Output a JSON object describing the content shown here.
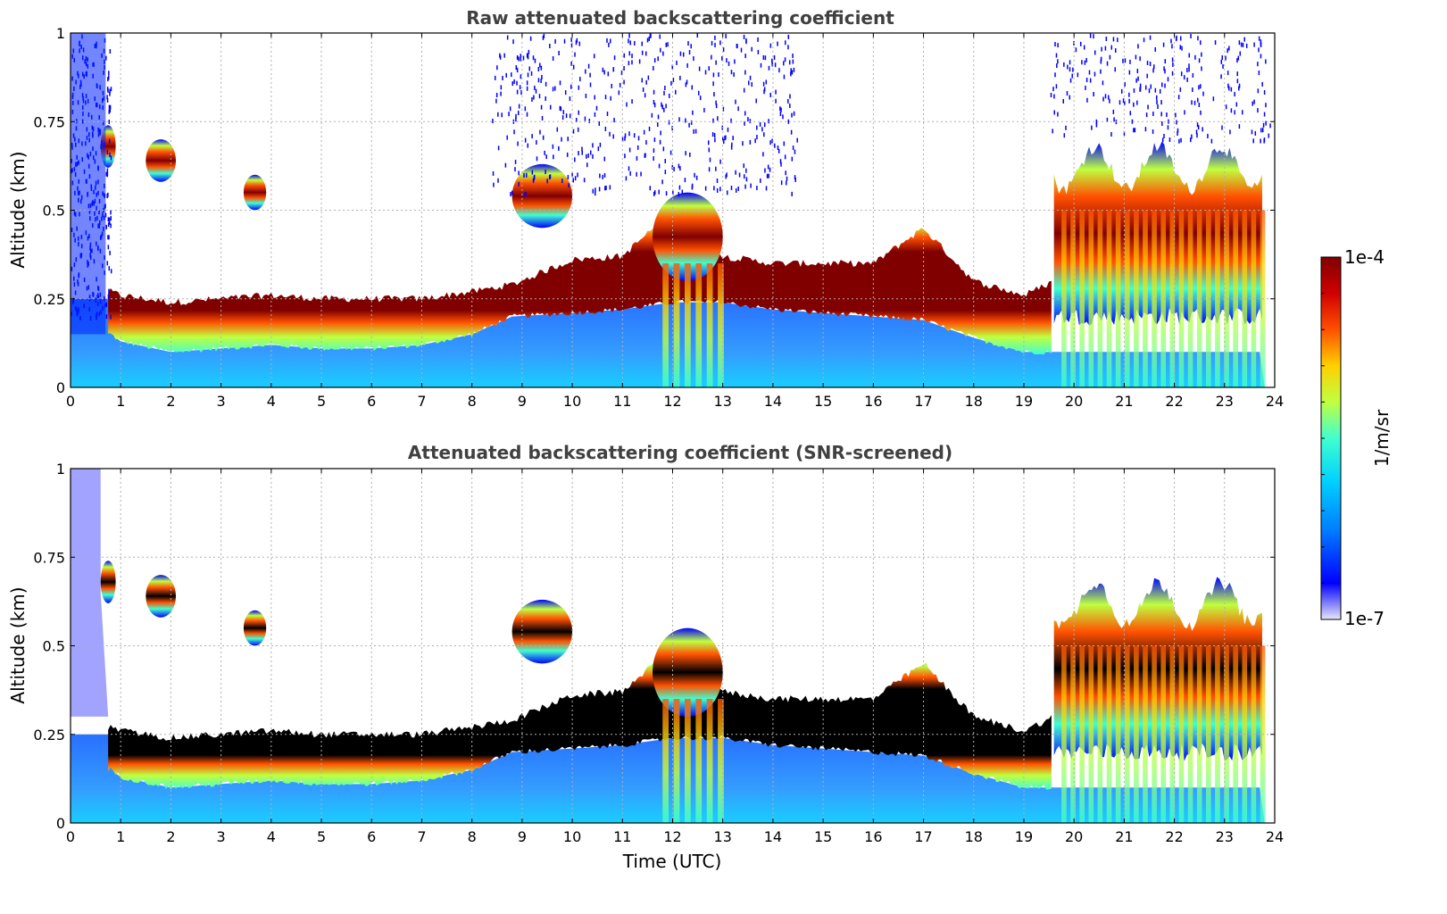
{
  "chart_data": [
    {
      "type": "heatmap",
      "title": "Raw attenuated backscattering coefficient",
      "xlabel": "",
      "ylabel": "Altitude (km)",
      "xlim": [
        0,
        24
      ],
      "ylim": [
        0,
        1
      ],
      "x_ticks": [
        "0",
        "1",
        "2",
        "3",
        "4",
        "5",
        "6",
        "7",
        "8",
        "9",
        "10",
        "11",
        "12",
        "13",
        "14",
        "15",
        "16",
        "17",
        "18",
        "19",
        "20",
        "21",
        "22",
        "23",
        "24"
      ],
      "y_ticks": [
        "0",
        "0.25",
        "0.5",
        "0.75",
        "1"
      ],
      "grid": true,
      "layer_base_km": [
        {
          "t": 0.8,
          "v": 0.15
        },
        {
          "t": 1,
          "v": 0.13
        },
        {
          "t": 2,
          "v": 0.1
        },
        {
          "t": 3,
          "v": 0.11
        },
        {
          "t": 4,
          "v": 0.12
        },
        {
          "t": 5,
          "v": 0.11
        },
        {
          "t": 6,
          "v": 0.11
        },
        {
          "t": 7,
          "v": 0.12
        },
        {
          "t": 8,
          "v": 0.15
        },
        {
          "t": 8.8,
          "v": 0.2
        },
        {
          "t": 10,
          "v": 0.21
        },
        {
          "t": 11,
          "v": 0.22
        },
        {
          "t": 12,
          "v": 0.24
        },
        {
          "t": 13,
          "v": 0.24
        },
        {
          "t": 14,
          "v": 0.22
        },
        {
          "t": 15,
          "v": 0.21
        },
        {
          "t": 16,
          "v": 0.2
        },
        {
          "t": 17,
          "v": 0.19
        },
        {
          "t": 18,
          "v": 0.14
        },
        {
          "t": 19,
          "v": 0.1
        },
        {
          "t": 19.6,
          "v": 0.1
        }
      ],
      "layer_top_km": [
        {
          "t": 0.8,
          "v": 0.27
        },
        {
          "t": 1,
          "v": 0.26
        },
        {
          "t": 2,
          "v": 0.24
        },
        {
          "t": 3,
          "v": 0.25
        },
        {
          "t": 4,
          "v": 0.26
        },
        {
          "t": 5,
          "v": 0.25
        },
        {
          "t": 6,
          "v": 0.25
        },
        {
          "t": 7,
          "v": 0.25
        },
        {
          "t": 8,
          "v": 0.27
        },
        {
          "t": 8.8,
          "v": 0.29
        },
        {
          "t": 10,
          "v": 0.36
        },
        {
          "t": 11,
          "v": 0.37
        },
        {
          "t": 12,
          "v": 0.5
        },
        {
          "t": 13,
          "v": 0.37
        },
        {
          "t": 14,
          "v": 0.35
        },
        {
          "t": 15,
          "v": 0.35
        },
        {
          "t": 16,
          "v": 0.35
        },
        {
          "t": 17,
          "v": 0.45
        },
        {
          "t": 18,
          "v": 0.3
        },
        {
          "t": 19,
          "v": 0.26
        },
        {
          "t": 19.6,
          "v": 0.3
        }
      ],
      "cloud_patches": [
        {
          "t0": 0.6,
          "t1": 0.9,
          "bottom": 0.62,
          "top": 0.74
        },
        {
          "t0": 1.5,
          "t1": 2.1,
          "bottom": 0.58,
          "top": 0.7
        },
        {
          "t0": 3.45,
          "t1": 3.9,
          "bottom": 0.5,
          "top": 0.6
        },
        {
          "t0": 8.8,
          "t1": 10.0,
          "bottom": 0.45,
          "top": 0.63
        },
        {
          "t0": 11.6,
          "t1": 13.0,
          "bottom": 0.3,
          "top": 0.55
        },
        {
          "t0": 19.6,
          "t1": 23.8,
          "bottom": 0.2,
          "top": 0.7
        }
      ]
    },
    {
      "type": "heatmap",
      "title": "Attenuated backscattering coefficient (SNR-screened)",
      "xlabel": "Time (UTC)",
      "ylabel": "Altitude (km)",
      "xlim": [
        0,
        24
      ],
      "ylim": [
        0,
        1
      ],
      "x_ticks": [
        "0",
        "1",
        "2",
        "3",
        "4",
        "5",
        "6",
        "7",
        "8",
        "9",
        "10",
        "11",
        "12",
        "13",
        "14",
        "15",
        "16",
        "17",
        "18",
        "19",
        "20",
        "21",
        "22",
        "23",
        "24"
      ],
      "y_ticks": [
        "0",
        "0.25",
        "0.5",
        "0.75",
        "1"
      ],
      "grid": true
    }
  ],
  "colorbar": {
    "label": "1/m/sr",
    "max_label": "1e-4",
    "min_label": "1e-7",
    "colormap": [
      "#e6e6f8",
      "#0000ff",
      "#0080ff",
      "#00d0ff",
      "#40ffd0",
      "#c0ff40",
      "#ffd000",
      "#ff5000",
      "#d00000",
      "#800000"
    ]
  }
}
